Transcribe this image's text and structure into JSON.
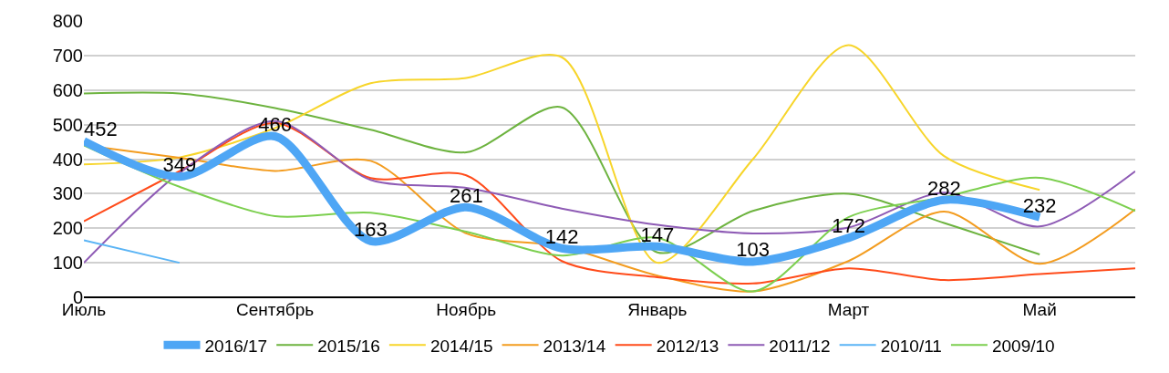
{
  "chart_data": {
    "type": "line",
    "categories": [
      "Июль",
      null,
      "Сентябрь",
      null,
      "Ноябрь",
      null,
      "Январь",
      null,
      "Март",
      null,
      "Май",
      null
    ],
    "ylim": [
      0,
      800
    ],
    "yticks": [
      0,
      100,
      200,
      300,
      400,
      500,
      600,
      700,
      800
    ],
    "grid": "y",
    "legend": "bottom",
    "marker": "none",
    "line_style": "solid",
    "series": [
      {
        "name": "2016/17",
        "color": "#4ea6f5",
        "values": [
          452,
          349,
          466,
          163,
          261,
          142,
          147,
          103,
          172,
          282,
          232,
          null
        ],
        "value_labels": [
          "452",
          "349",
          "466",
          "163",
          "261",
          "142",
          "147",
          "103",
          "172",
          "282",
          "232",
          null
        ]
      },
      {
        "name": "2015/16",
        "color": "#6db33f",
        "values": [
          590,
          590,
          548,
          485,
          420,
          550,
          130,
          250,
          300,
          215,
          124,
          null
        ]
      },
      {
        "name": "2014/15",
        "color": "#f7d52a",
        "values": [
          385,
          405,
          490,
          620,
          635,
          695,
          100,
          400,
          730,
          409,
          311,
          null
        ]
      },
      {
        "name": "2013/14",
        "color": "#f39c1f",
        "values": [
          440,
          404,
          366,
          395,
          185,
          147,
          63,
          17,
          105,
          248,
          97,
          255
        ]
      },
      {
        "name": "2012/13",
        "color": "#ff4b1a",
        "values": [
          220,
          365,
          505,
          345,
          353,
          105,
          58,
          40,
          84,
          50,
          67,
          84
        ]
      },
      {
        "name": "2011/12",
        "color": "#8e5bb5",
        "values": [
          100,
          360,
          510,
          340,
          317,
          257,
          210,
          185,
          202,
          303,
          205,
          365
        ]
      },
      {
        "name": "2010/11",
        "color": "#5ab4f5",
        "values": [
          165,
          100,
          null,
          null,
          null,
          null,
          null,
          null,
          null,
          null,
          null,
          null
        ]
      },
      {
        "name": "2009/10",
        "color": "#7ccf4f",
        "values": [
          440,
          320,
          235,
          245,
          190,
          121,
          172,
          17,
          232,
          290,
          346,
          250
        ]
      }
    ]
  }
}
